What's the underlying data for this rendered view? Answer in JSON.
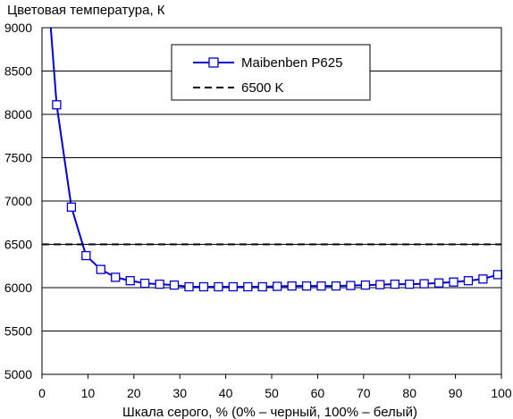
{
  "chart_data": {
    "type": "line",
    "ylabel": "Цветовая температура, К",
    "xlabel": "Шкала серого, % (0% – черный, 100% – белый)",
    "xlim": [
      0,
      100
    ],
    "ylim": [
      5000,
      9000
    ],
    "x_ticks": [
      "0",
      "10",
      "20",
      "30",
      "40",
      "50",
      "60",
      "70",
      "80",
      "90",
      "100"
    ],
    "y_ticks": [
      "5000",
      "5500",
      "6000",
      "6500",
      "7000",
      "7500",
      "8000",
      "8500",
      "9000"
    ],
    "grid": "horizontal",
    "legend_position": "top-right",
    "series": [
      {
        "name": "Maibenben P625",
        "color": "#0000cc",
        "marker": "square",
        "x": [
          3.2,
          6.4,
          9.6,
          12.8,
          16,
          19.2,
          22.4,
          25.6,
          28.8,
          32,
          35.2,
          38.4,
          41.6,
          44.8,
          48,
          51.2,
          54.4,
          57.6,
          60.8,
          64,
          67.2,
          70.4,
          73.6,
          76.8,
          80,
          83.2,
          86.4,
          89.6,
          92.8,
          96,
          99.2
        ],
        "y": [
          8110,
          6930,
          6370,
          6210,
          6120,
          6080,
          6050,
          6040,
          6030,
          6010,
          6010,
          6010,
          6010,
          6010,
          6010,
          6015,
          6020,
          6020,
          6020,
          6020,
          6025,
          6030,
          6035,
          6040,
          6040,
          6045,
          6055,
          6065,
          6080,
          6100,
          6150
        ],
        "line_start": [
          1.9,
          9000
        ]
      },
      {
        "name": "6500 K",
        "color": "#000000",
        "dash": true,
        "value": 6500
      }
    ]
  }
}
